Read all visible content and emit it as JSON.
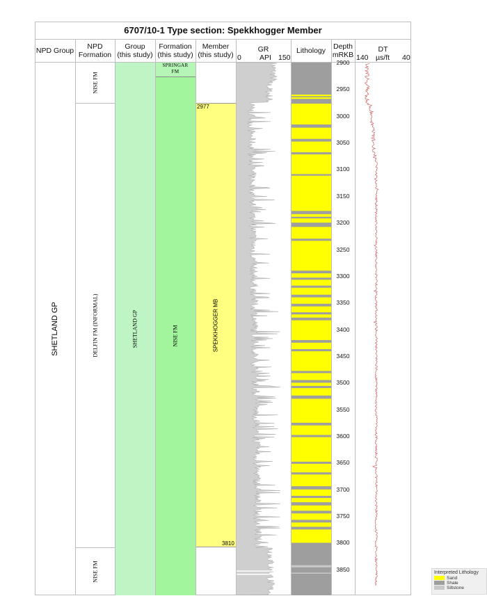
{
  "title": "6707/10-1 Type section: Spekkhogger Member",
  "columns": {
    "npd_group": "NPD Group",
    "npd_formation": [
      "NPD",
      "Formation"
    ],
    "group": [
      "Group",
      "(this study)"
    ],
    "formation": [
      "Formation",
      "(this study)"
    ],
    "member": [
      "Member",
      "(this study)"
    ],
    "gr": {
      "name": "GR",
      "unit": "API",
      "min": "0",
      "max": "150"
    },
    "lithology": "Lithology",
    "depth": [
      "Depth",
      "mRKB"
    ],
    "dt": {
      "name": "DT",
      "unit": "µs/ft",
      "left": "140",
      "right": "40"
    }
  },
  "depth_ticks": [
    "2900",
    "2950",
    "3000",
    "3050",
    "3100",
    "3150",
    "3200",
    "3250",
    "3300",
    "3350",
    "3400",
    "3450",
    "3500",
    "3550",
    "3600",
    "3650",
    "3700",
    "3750",
    "3800",
    "3850"
  ],
  "units": {
    "npd_group": "SHETLAND GP",
    "npd_formation": {
      "top": "NISE FM",
      "mid": "DELFIN FM (INFORMAL)",
      "bottom": "NISE FM"
    },
    "group": "SHETLAND GP",
    "formation": {
      "top": "SPRINGAR FM",
      "main": "NISE FM"
    },
    "member": {
      "name": "SPEKKHOGGER MB",
      "top_label": "2977",
      "bottom_label": "3810"
    }
  },
  "depth_range": [
    2900,
    3900
  ],
  "formation_tops": {
    "npd_delfin_top": 2977,
    "npd_nise_lower_top": 3810,
    "springar_base": 2930,
    "member_top": 2977,
    "member_base": 3810
  },
  "legend": {
    "title": "Interpreted Lithology",
    "items": [
      {
        "label": "Sand",
        "color": "#ffff00"
      },
      {
        "label": "Shale",
        "color": "#9e9e9e"
      },
      {
        "label": "Siltstone",
        "color": "#c8c8c8"
      }
    ]
  },
  "colors": {
    "sand": "#ffff00",
    "shale": "#9e9e9e",
    "group_fill": "#bff5c4",
    "formation_fill": "#a3f59d",
    "member_fill": "#ffff80",
    "gr_fill": "#cfcfcf",
    "dt_curve": "#c86464"
  }
}
